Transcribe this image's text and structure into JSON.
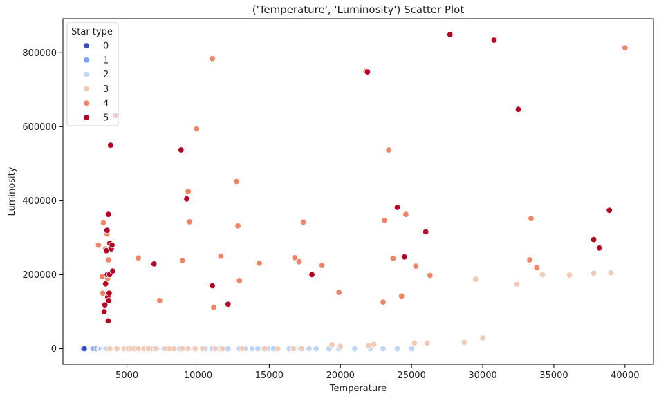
{
  "chart_data": {
    "type": "scatter",
    "title": "('Temperature', 'Luminosity') Scatter Plot",
    "xlabel": "Temperature",
    "ylabel": "Luminosity",
    "xlim": [
      500,
      42000
    ],
    "ylim": [
      -42000,
      892000
    ],
    "xticks": [
      5000,
      10000,
      15000,
      20000,
      25000,
      30000,
      35000,
      40000
    ],
    "yticks": [
      0,
      200000,
      400000,
      600000,
      800000
    ],
    "grid": false,
    "legend": {
      "title": "Star type",
      "position": "top-left",
      "entries": [
        "0",
        "1",
        "2",
        "3",
        "4",
        "5"
      ]
    },
    "colors": {
      "0": "#3b4cc0",
      "1": "#7b9ff9",
      "2": "#c0d4f5",
      "3": "#f2cbb7",
      "4": "#ee8468",
      "5": "#b40426"
    },
    "series": [
      {
        "name": "0",
        "points": [
          [
            1939,
            0
          ],
          [
            2000,
            0
          ],
          [
            2600,
            0
          ],
          [
            2650,
            0
          ],
          [
            2700,
            0
          ],
          [
            2774,
            0
          ],
          [
            2800,
            0
          ],
          [
            2840,
            0
          ],
          [
            2860,
            0
          ],
          [
            2890,
            0
          ],
          [
            2935,
            0
          ],
          [
            2980,
            0
          ],
          [
            3000,
            0
          ],
          [
            3040,
            0
          ],
          [
            3070,
            0
          ],
          [
            3100,
            0
          ],
          [
            3128,
            0
          ],
          [
            3150,
            0
          ],
          [
            3200,
            0
          ],
          [
            3345,
            0
          ],
          [
            3400,
            0
          ],
          [
            3500,
            0
          ],
          [
            3600,
            0
          ]
        ]
      },
      {
        "name": "1",
        "points": [
          [
            2650,
            0
          ],
          [
            2800,
            0
          ],
          [
            2900,
            0
          ],
          [
            3050,
            0
          ],
          [
            3100,
            0
          ],
          [
            3150,
            0
          ],
          [
            3200,
            0
          ],
          [
            3300,
            0
          ],
          [
            3340,
            0
          ],
          [
            3400,
            0
          ],
          [
            3450,
            0
          ],
          [
            3500,
            0
          ],
          [
            3550,
            0
          ],
          [
            3600,
            0
          ],
          [
            3628,
            0
          ],
          [
            3700,
            0
          ]
        ]
      },
      {
        "name": "2",
        "points": [
          [
            3600,
            0
          ],
          [
            5800,
            0
          ],
          [
            6800,
            0
          ],
          [
            7100,
            0
          ],
          [
            7600,
            0
          ],
          [
            8300,
            0
          ],
          [
            8700,
            0
          ],
          [
            9200,
            0
          ],
          [
            9700,
            0
          ],
          [
            10500,
            0
          ],
          [
            10980,
            0
          ],
          [
            11500,
            0
          ],
          [
            12000,
            0
          ],
          [
            12100,
            0
          ],
          [
            12900,
            0
          ],
          [
            13300,
            0
          ],
          [
            13800,
            0
          ],
          [
            14200,
            0
          ],
          [
            14600,
            0
          ],
          [
            14900,
            0
          ],
          [
            15300,
            0
          ],
          [
            16400,
            0
          ],
          [
            16800,
            0
          ],
          [
            17200,
            0
          ],
          [
            17800,
            0
          ],
          [
            18300,
            0
          ],
          [
            19200,
            0
          ],
          [
            19900,
            0
          ],
          [
            21000,
            0
          ],
          [
            22100,
            0
          ],
          [
            23000,
            0
          ],
          [
            24000,
            0
          ],
          [
            25000,
            0
          ]
        ]
      },
      {
        "name": "3",
        "points": [
          [
            3800,
            0
          ],
          [
            4300,
            0
          ],
          [
            4800,
            0
          ],
          [
            5100,
            0
          ],
          [
            5300,
            0
          ],
          [
            5500,
            0
          ],
          [
            5800,
            0
          ],
          [
            6200,
            0
          ],
          [
            6500,
            0
          ],
          [
            7000,
            0
          ],
          [
            7700,
            0
          ],
          [
            8000,
            0
          ],
          [
            8300,
            0
          ],
          [
            8900,
            0
          ],
          [
            9300,
            0
          ],
          [
            9800,
            0
          ],
          [
            10300,
            0
          ],
          [
            11200,
            0
          ],
          [
            11700,
            0
          ],
          [
            13100,
            0
          ],
          [
            14700,
            0
          ],
          [
            15600,
            0
          ],
          [
            16700,
            0
          ],
          [
            17300,
            0
          ],
          [
            19400,
            10500
          ],
          [
            20000,
            6000
          ],
          [
            22000,
            7500
          ],
          [
            22350,
            12000
          ],
          [
            25200,
            15000
          ],
          [
            26100,
            15000
          ],
          [
            28700,
            17000
          ],
          [
            30000,
            29000
          ],
          [
            29500,
            188000
          ],
          [
            32400,
            174000
          ],
          [
            34200,
            200000
          ],
          [
            36100,
            199000
          ],
          [
            37800,
            204000
          ],
          [
            39000,
            205000
          ]
        ]
      },
      {
        "name": "4",
        "points": [
          [
            3000,
            280000
          ],
          [
            3250,
            195000
          ],
          [
            3300,
            150000
          ],
          [
            3350,
            340000
          ],
          [
            3500,
            270000
          ],
          [
            3600,
            310000
          ],
          [
            3650,
            190000
          ],
          [
            3700,
            240000
          ],
          [
            3750,
            200000
          ],
          [
            3800,
            270000
          ],
          [
            5800,
            245000
          ],
          [
            7300,
            130000
          ],
          [
            8900,
            238000
          ],
          [
            9300,
            425000
          ],
          [
            9400,
            343000
          ],
          [
            9900,
            594000
          ],
          [
            11000,
            784000
          ],
          [
            11100,
            112000
          ],
          [
            11600,
            250000
          ],
          [
            12700,
            452000
          ],
          [
            12800,
            332000
          ],
          [
            12900,
            184000
          ],
          [
            14300,
            231000
          ],
          [
            16800,
            246000
          ],
          [
            17100,
            235000
          ],
          [
            17400,
            342000
          ],
          [
            18700,
            225000
          ],
          [
            19900,
            152000
          ],
          [
            21800,
            750000
          ],
          [
            23000,
            126000
          ],
          [
            23100,
            347000
          ],
          [
            23400,
            537000
          ],
          [
            23700,
            244000
          ],
          [
            24300,
            142000
          ],
          [
            24600,
            363000
          ],
          [
            25300,
            223000
          ],
          [
            26300,
            198000
          ],
          [
            33300,
            240000
          ],
          [
            33400,
            352000
          ],
          [
            33800,
            219000
          ],
          [
            40000,
            813000
          ]
        ]
      },
      {
        "name": "5",
        "points": [
          [
            3400,
            100000
          ],
          [
            3450,
            118000
          ],
          [
            3500,
            175000
          ],
          [
            3550,
            265000
          ],
          [
            3600,
            320000
          ],
          [
            3620,
            200000
          ],
          [
            3650,
            140000
          ],
          [
            3680,
            75000
          ],
          [
            3700,
            363000
          ],
          [
            3720,
            130000
          ],
          [
            3750,
            150000
          ],
          [
            3780,
            200000
          ],
          [
            3800,
            285000
          ],
          [
            3850,
            550000
          ],
          [
            3900,
            270000
          ],
          [
            3950,
            280000
          ],
          [
            4000,
            210000
          ],
          [
            4200,
            630000
          ],
          [
            6900,
            229000
          ],
          [
            8800,
            537000
          ],
          [
            9200,
            405000
          ],
          [
            11000,
            170000
          ],
          [
            12100,
            120000
          ],
          [
            18000,
            200000
          ],
          [
            21900,
            748000
          ],
          [
            24000,
            382000
          ],
          [
            24500,
            248000
          ],
          [
            26000,
            316000
          ],
          [
            27700,
            849000
          ],
          [
            30800,
            834000
          ],
          [
            32500,
            647000
          ],
          [
            37800,
            295000
          ],
          [
            38200,
            272000
          ],
          [
            38900,
            374000
          ]
        ]
      }
    ]
  }
}
